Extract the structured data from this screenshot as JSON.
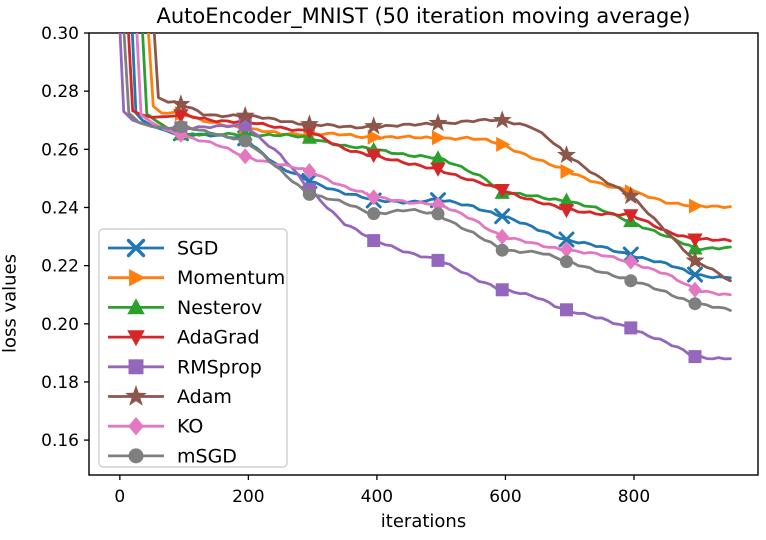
{
  "figure": {
    "background": "#ffffff"
  },
  "chart_data": {
    "type": "line",
    "title": "AutoEncoder_MNIST (50 iteration moving average)",
    "xlabel": "iterations",
    "ylabel": "loss values",
    "xlim": [
      -48,
      993
    ],
    "ylim": [
      0.148,
      0.3
    ],
    "x_ticks": [
      0,
      200,
      400,
      600,
      800
    ],
    "x_tick_labels": [
      "0",
      "200",
      "400",
      "600",
      "800"
    ],
    "y_ticks": [
      0.3,
      0.28,
      0.26,
      0.24,
      0.22,
      0.2,
      0.18,
      0.16
    ],
    "y_tick_labels": [
      "0.30",
      "0.28",
      "0.26",
      "0.24",
      "0.22",
      "0.20",
      "0.18",
      "0.16"
    ],
    "grid": false,
    "legend_position": "lower-left-inside",
    "marker_xs": [
      95,
      195,
      295,
      395,
      495,
      595,
      695,
      795,
      895
    ],
    "axis_color": "#000000",
    "legend_border_color": "#c8c8c8",
    "series": [
      {
        "name": "SGD",
        "color": "#1f77b4",
        "marker": "x",
        "points": [
          [
            19,
            0.302
          ],
          [
            25,
            0.2725
          ],
          [
            35,
            0.27
          ],
          [
            50,
            0.268
          ],
          [
            75,
            0.2662
          ],
          [
            95,
            0.2655
          ],
          [
            150,
            0.2645
          ],
          [
            195,
            0.2638
          ],
          [
            250,
            0.2535
          ],
          [
            295,
            0.2491
          ],
          [
            350,
            0.245
          ],
          [
            395,
            0.2424
          ],
          [
            450,
            0.242
          ],
          [
            495,
            0.2425
          ],
          [
            550,
            0.2405
          ],
          [
            595,
            0.237
          ],
          [
            650,
            0.2325
          ],
          [
            695,
            0.229
          ],
          [
            750,
            0.2262
          ],
          [
            795,
            0.2238
          ],
          [
            850,
            0.2205
          ],
          [
            895,
            0.2169
          ],
          [
            950,
            0.2158
          ]
        ]
      },
      {
        "name": "Momentum",
        "color": "#ff7f0e",
        "marker": "triangle-right",
        "points": [
          [
            44,
            0.302
          ],
          [
            52,
            0.2748
          ],
          [
            65,
            0.2725
          ],
          [
            95,
            0.2722
          ],
          [
            130,
            0.27
          ],
          [
            150,
            0.2692
          ],
          [
            195,
            0.2669
          ],
          [
            250,
            0.2656
          ],
          [
            295,
            0.2652
          ],
          [
            350,
            0.265
          ],
          [
            395,
            0.2642
          ],
          [
            450,
            0.264
          ],
          [
            495,
            0.264
          ],
          [
            540,
            0.2638
          ],
          [
            570,
            0.263
          ],
          [
            595,
            0.2617
          ],
          [
            650,
            0.2565
          ],
          [
            695,
            0.2524
          ],
          [
            750,
            0.2482
          ],
          [
            795,
            0.2454
          ],
          [
            850,
            0.242
          ],
          [
            895,
            0.2405
          ],
          [
            930,
            0.24
          ],
          [
            950,
            0.2403
          ]
        ]
      },
      {
        "name": "Nesterov",
        "color": "#2ca02c",
        "marker": "triangle-up",
        "points": [
          [
            35,
            0.302
          ],
          [
            42,
            0.2722
          ],
          [
            55,
            0.27
          ],
          [
            75,
            0.2672
          ],
          [
            95,
            0.2652
          ],
          [
            150,
            0.265
          ],
          [
            195,
            0.2652
          ],
          [
            250,
            0.2648
          ],
          [
            295,
            0.264
          ],
          [
            350,
            0.2612
          ],
          [
            395,
            0.2598
          ],
          [
            450,
            0.2582
          ],
          [
            495,
            0.2569
          ],
          [
            540,
            0.253
          ],
          [
            570,
            0.25
          ],
          [
            595,
            0.245
          ],
          [
            650,
            0.2437
          ],
          [
            695,
            0.2424
          ],
          [
            750,
            0.239
          ],
          [
            795,
            0.2353
          ],
          [
            850,
            0.23
          ],
          [
            895,
            0.2259
          ],
          [
            950,
            0.2264
          ]
        ]
      },
      {
        "name": "AdaGrad",
        "color": "#d62728",
        "marker": "triangle-down",
        "points": [
          [
            13,
            0.302
          ],
          [
            20,
            0.2732
          ],
          [
            35,
            0.2718
          ],
          [
            50,
            0.271
          ],
          [
            75,
            0.2713
          ],
          [
            95,
            0.2717
          ],
          [
            150,
            0.27
          ],
          [
            195,
            0.2693
          ],
          [
            250,
            0.2675
          ],
          [
            295,
            0.2663
          ],
          [
            330,
            0.262
          ],
          [
            350,
            0.26
          ],
          [
            395,
            0.258
          ],
          [
            450,
            0.2548
          ],
          [
            495,
            0.2533
          ],
          [
            550,
            0.249
          ],
          [
            595,
            0.246
          ],
          [
            650,
            0.242
          ],
          [
            695,
            0.2391
          ],
          [
            750,
            0.238
          ],
          [
            795,
            0.2373
          ],
          [
            850,
            0.232
          ],
          [
            895,
            0.229
          ],
          [
            950,
            0.2285
          ]
        ]
      },
      {
        "name": "RMSprop",
        "color": "#9467bd",
        "marker": "square",
        "points": [
          [
            0,
            0.302
          ],
          [
            6,
            0.273
          ],
          [
            20,
            0.27
          ],
          [
            50,
            0.2678
          ],
          [
            95,
            0.2674
          ],
          [
            150,
            0.2676
          ],
          [
            195,
            0.2684
          ],
          [
            250,
            0.258
          ],
          [
            295,
            0.2462
          ],
          [
            350,
            0.2345
          ],
          [
            395,
            0.2286
          ],
          [
            450,
            0.2246
          ],
          [
            495,
            0.2218
          ],
          [
            550,
            0.216
          ],
          [
            595,
            0.2117
          ],
          [
            650,
            0.209
          ],
          [
            695,
            0.2048
          ],
          [
            750,
            0.2015
          ],
          [
            795,
            0.1986
          ],
          [
            850,
            0.1935
          ],
          [
            895,
            0.1887
          ],
          [
            950,
            0.188
          ]
        ]
      },
      {
        "name": "Adam",
        "color": "#8c564b",
        "marker": "star",
        "points": [
          [
            53,
            0.302
          ],
          [
            60,
            0.2778
          ],
          [
            75,
            0.2762
          ],
          [
            95,
            0.2755
          ],
          [
            130,
            0.2722
          ],
          [
            150,
            0.2718
          ],
          [
            195,
            0.2715
          ],
          [
            250,
            0.27
          ],
          [
            295,
            0.2686
          ],
          [
            350,
            0.2676
          ],
          [
            395,
            0.2679
          ],
          [
            450,
            0.2682
          ],
          [
            495,
            0.269
          ],
          [
            550,
            0.2697
          ],
          [
            595,
            0.27
          ],
          [
            640,
            0.268
          ],
          [
            665,
            0.264
          ],
          [
            695,
            0.258
          ],
          [
            750,
            0.25
          ],
          [
            795,
            0.2439
          ],
          [
            850,
            0.232
          ],
          [
            895,
            0.2217
          ],
          [
            950,
            0.2148
          ]
        ]
      },
      {
        "name": "KO",
        "color": "#e377c2",
        "marker": "diamond",
        "points": [
          [
            26,
            0.302
          ],
          [
            33,
            0.2718
          ],
          [
            50,
            0.2692
          ],
          [
            70,
            0.2668
          ],
          [
            95,
            0.265
          ],
          [
            150,
            0.2615
          ],
          [
            195,
            0.2576
          ],
          [
            250,
            0.2546
          ],
          [
            295,
            0.2525
          ],
          [
            350,
            0.2472
          ],
          [
            395,
            0.2435
          ],
          [
            450,
            0.242
          ],
          [
            495,
            0.241
          ],
          [
            550,
            0.236
          ],
          [
            595,
            0.2299
          ],
          [
            650,
            0.2272
          ],
          [
            695,
            0.2255
          ],
          [
            750,
            0.2235
          ],
          [
            795,
            0.2214
          ],
          [
            850,
            0.217
          ],
          [
            895,
            0.2117
          ],
          [
            950,
            0.21
          ]
        ]
      },
      {
        "name": "mSGD",
        "color": "#7f7f7f",
        "marker": "circle",
        "points": [
          [
            6,
            0.302
          ],
          [
            14,
            0.2725
          ],
          [
            30,
            0.2692
          ],
          [
            50,
            0.2678
          ],
          [
            75,
            0.2672
          ],
          [
            95,
            0.2678
          ],
          [
            150,
            0.2655
          ],
          [
            195,
            0.2629
          ],
          [
            250,
            0.2528
          ],
          [
            295,
            0.2445
          ],
          [
            350,
            0.2415
          ],
          [
            395,
            0.2379
          ],
          [
            450,
            0.239
          ],
          [
            495,
            0.2378
          ],
          [
            550,
            0.231
          ],
          [
            595,
            0.2253
          ],
          [
            650,
            0.2248
          ],
          [
            695,
            0.2214
          ],
          [
            750,
            0.218
          ],
          [
            795,
            0.2148
          ],
          [
            850,
            0.211
          ],
          [
            895,
            0.2069
          ],
          [
            950,
            0.2046
          ]
        ]
      }
    ]
  }
}
